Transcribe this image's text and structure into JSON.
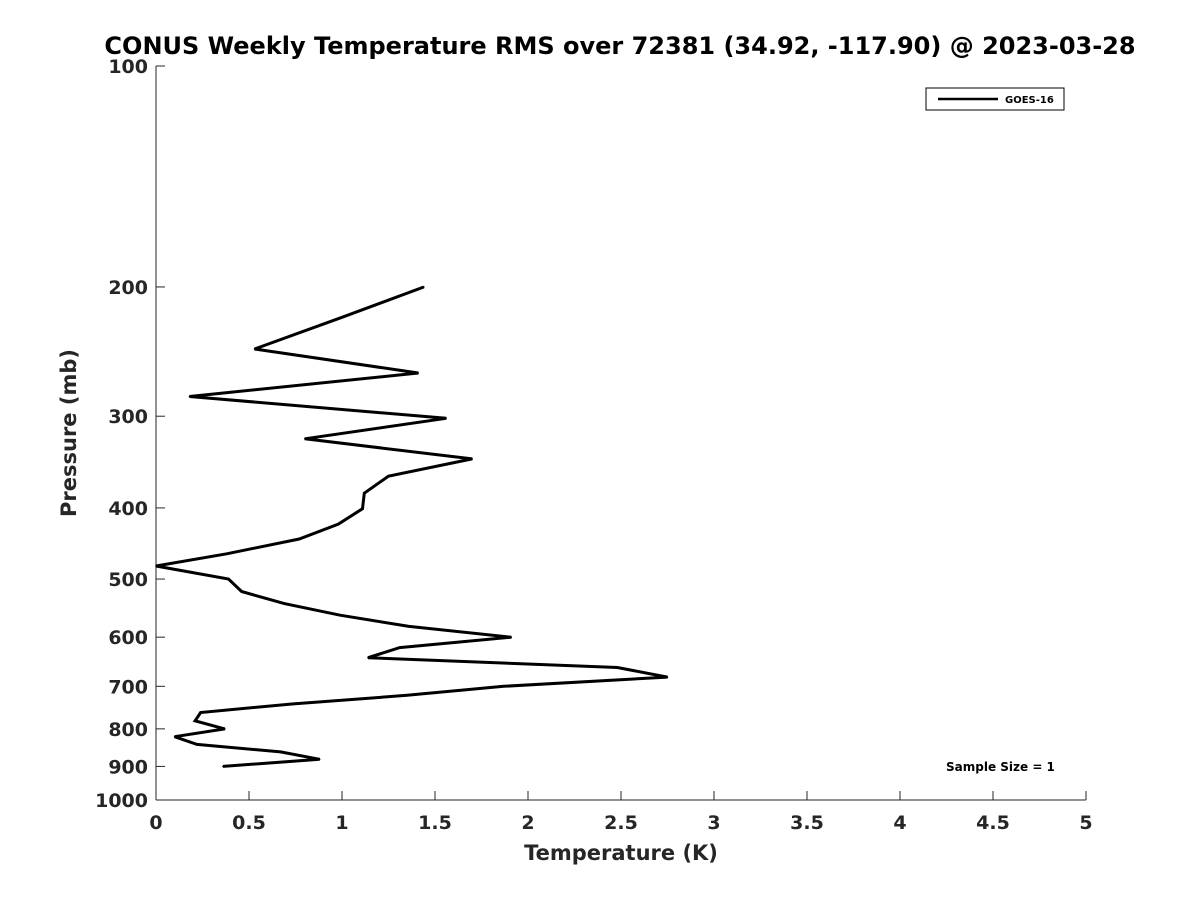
{
  "chart_data": {
    "type": "line",
    "title": "CONUS Weekly Temperature RMS over 72381 (34.92, -117.90) @ 2023-03-28",
    "xlabel": "Temperature (K)",
    "ylabel": "Pressure (mb)",
    "xlim": [
      0,
      5
    ],
    "ylim": [
      100,
      1000
    ],
    "y_scale": "log",
    "y_reversed": true,
    "x_ticks": [
      0,
      0.5,
      1,
      1.5,
      2,
      2.5,
      3,
      3.5,
      4,
      4.5,
      5
    ],
    "x_tick_labels": [
      "0",
      "0.5",
      "1",
      "1.5",
      "2",
      "2.5",
      "3",
      "3.5",
      "4",
      "4.5",
      "5"
    ],
    "y_ticks": [
      100,
      200,
      300,
      400,
      500,
      600,
      700,
      800,
      900,
      1000
    ],
    "y_tick_labels": [
      "100",
      "200",
      "300",
      "400",
      "500",
      "600",
      "700",
      "800",
      "900",
      "1000"
    ],
    "grid": false,
    "legend_position": "top-right",
    "series": [
      {
        "name": "GOES-16",
        "color": "#000000",
        "points": [
          {
            "x": 1.44,
            "y": 200
          },
          {
            "x": 1.0,
            "y": 220
          },
          {
            "x": 0.53,
            "y": 243
          },
          {
            "x": 1.41,
            "y": 262
          },
          {
            "x": 0.18,
            "y": 282
          },
          {
            "x": 1.56,
            "y": 302
          },
          {
            "x": 0.8,
            "y": 322
          },
          {
            "x": 1.7,
            "y": 343
          },
          {
            "x": 1.25,
            "y": 362
          },
          {
            "x": 1.12,
            "y": 382
          },
          {
            "x": 1.11,
            "y": 401
          },
          {
            "x": 0.98,
            "y": 421
          },
          {
            "x": 0.77,
            "y": 441
          },
          {
            "x": 0.38,
            "y": 462
          },
          {
            "x": 0.0,
            "y": 480
          },
          {
            "x": 0.39,
            "y": 500
          },
          {
            "x": 0.46,
            "y": 520
          },
          {
            "x": 0.69,
            "y": 540
          },
          {
            "x": 0.99,
            "y": 560
          },
          {
            "x": 1.36,
            "y": 580
          },
          {
            "x": 1.91,
            "y": 600
          },
          {
            "x": 1.31,
            "y": 620
          },
          {
            "x": 1.14,
            "y": 640
          },
          {
            "x": 2.48,
            "y": 660
          },
          {
            "x": 2.75,
            "y": 680
          },
          {
            "x": 1.87,
            "y": 700
          },
          {
            "x": 1.35,
            "y": 720
          },
          {
            "x": 0.73,
            "y": 740
          },
          {
            "x": 0.24,
            "y": 760
          },
          {
            "x": 0.21,
            "y": 780
          },
          {
            "x": 0.37,
            "y": 800
          },
          {
            "x": 0.1,
            "y": 820
          },
          {
            "x": 0.22,
            "y": 840
          },
          {
            "x": 0.67,
            "y": 860
          },
          {
            "x": 0.88,
            "y": 880
          },
          {
            "x": 0.36,
            "y": 900
          }
        ]
      }
    ],
    "annotation": "Sample Size = 1"
  }
}
